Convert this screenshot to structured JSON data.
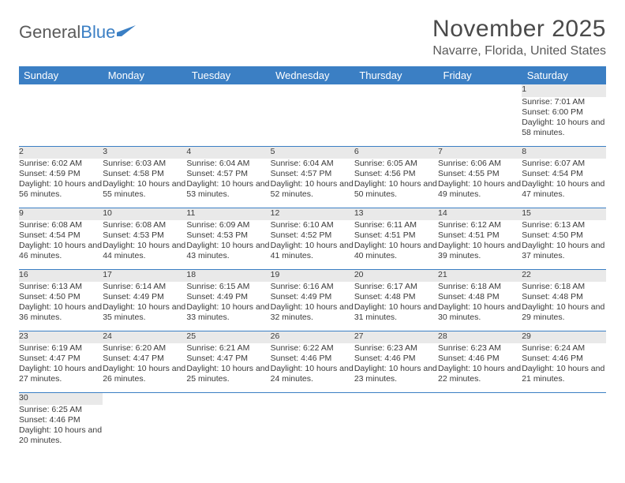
{
  "logo": {
    "text1": "General",
    "text2": "Blue"
  },
  "title": "November 2025",
  "location": "Navarre, Florida, United States",
  "colors": {
    "header_bg": "#3b7fc4",
    "header_text": "#ffffff",
    "daynum_bg": "#e9e9e9",
    "row_divider": "#3b7fc4",
    "body_text": "#3a3a3a"
  },
  "typography": {
    "title_fontsize": 30,
    "location_fontsize": 16,
    "dayheader_fontsize": 13,
    "daynum_fontsize": 12,
    "cell_fontsize": 10.5
  },
  "day_headers": [
    "Sunday",
    "Monday",
    "Tuesday",
    "Wednesday",
    "Thursday",
    "Friday",
    "Saturday"
  ],
  "weeks": [
    [
      null,
      null,
      null,
      null,
      null,
      null,
      {
        "n": "1",
        "sr": "Sunrise: 7:01 AM",
        "ss": "Sunset: 6:00 PM",
        "dl": "Daylight: 10 hours and 58 minutes."
      }
    ],
    [
      {
        "n": "2",
        "sr": "Sunrise: 6:02 AM",
        "ss": "Sunset: 4:59 PM",
        "dl": "Daylight: 10 hours and 56 minutes."
      },
      {
        "n": "3",
        "sr": "Sunrise: 6:03 AM",
        "ss": "Sunset: 4:58 PM",
        "dl": "Daylight: 10 hours and 55 minutes."
      },
      {
        "n": "4",
        "sr": "Sunrise: 6:04 AM",
        "ss": "Sunset: 4:57 PM",
        "dl": "Daylight: 10 hours and 53 minutes."
      },
      {
        "n": "5",
        "sr": "Sunrise: 6:04 AM",
        "ss": "Sunset: 4:57 PM",
        "dl": "Daylight: 10 hours and 52 minutes."
      },
      {
        "n": "6",
        "sr": "Sunrise: 6:05 AM",
        "ss": "Sunset: 4:56 PM",
        "dl": "Daylight: 10 hours and 50 minutes."
      },
      {
        "n": "7",
        "sr": "Sunrise: 6:06 AM",
        "ss": "Sunset: 4:55 PM",
        "dl": "Daylight: 10 hours and 49 minutes."
      },
      {
        "n": "8",
        "sr": "Sunrise: 6:07 AM",
        "ss": "Sunset: 4:54 PM",
        "dl": "Daylight: 10 hours and 47 minutes."
      }
    ],
    [
      {
        "n": "9",
        "sr": "Sunrise: 6:08 AM",
        "ss": "Sunset: 4:54 PM",
        "dl": "Daylight: 10 hours and 46 minutes."
      },
      {
        "n": "10",
        "sr": "Sunrise: 6:08 AM",
        "ss": "Sunset: 4:53 PM",
        "dl": "Daylight: 10 hours and 44 minutes."
      },
      {
        "n": "11",
        "sr": "Sunrise: 6:09 AM",
        "ss": "Sunset: 4:53 PM",
        "dl": "Daylight: 10 hours and 43 minutes."
      },
      {
        "n": "12",
        "sr": "Sunrise: 6:10 AM",
        "ss": "Sunset: 4:52 PM",
        "dl": "Daylight: 10 hours and 41 minutes."
      },
      {
        "n": "13",
        "sr": "Sunrise: 6:11 AM",
        "ss": "Sunset: 4:51 PM",
        "dl": "Daylight: 10 hours and 40 minutes."
      },
      {
        "n": "14",
        "sr": "Sunrise: 6:12 AM",
        "ss": "Sunset: 4:51 PM",
        "dl": "Daylight: 10 hours and 39 minutes."
      },
      {
        "n": "15",
        "sr": "Sunrise: 6:13 AM",
        "ss": "Sunset: 4:50 PM",
        "dl": "Daylight: 10 hours and 37 minutes."
      }
    ],
    [
      {
        "n": "16",
        "sr": "Sunrise: 6:13 AM",
        "ss": "Sunset: 4:50 PM",
        "dl": "Daylight: 10 hours and 36 minutes."
      },
      {
        "n": "17",
        "sr": "Sunrise: 6:14 AM",
        "ss": "Sunset: 4:49 PM",
        "dl": "Daylight: 10 hours and 35 minutes."
      },
      {
        "n": "18",
        "sr": "Sunrise: 6:15 AM",
        "ss": "Sunset: 4:49 PM",
        "dl": "Daylight: 10 hours and 33 minutes."
      },
      {
        "n": "19",
        "sr": "Sunrise: 6:16 AM",
        "ss": "Sunset: 4:49 PM",
        "dl": "Daylight: 10 hours and 32 minutes."
      },
      {
        "n": "20",
        "sr": "Sunrise: 6:17 AM",
        "ss": "Sunset: 4:48 PM",
        "dl": "Daylight: 10 hours and 31 minutes."
      },
      {
        "n": "21",
        "sr": "Sunrise: 6:18 AM",
        "ss": "Sunset: 4:48 PM",
        "dl": "Daylight: 10 hours and 30 minutes."
      },
      {
        "n": "22",
        "sr": "Sunrise: 6:18 AM",
        "ss": "Sunset: 4:48 PM",
        "dl": "Daylight: 10 hours and 29 minutes."
      }
    ],
    [
      {
        "n": "23",
        "sr": "Sunrise: 6:19 AM",
        "ss": "Sunset: 4:47 PM",
        "dl": "Daylight: 10 hours and 27 minutes."
      },
      {
        "n": "24",
        "sr": "Sunrise: 6:20 AM",
        "ss": "Sunset: 4:47 PM",
        "dl": "Daylight: 10 hours and 26 minutes."
      },
      {
        "n": "25",
        "sr": "Sunrise: 6:21 AM",
        "ss": "Sunset: 4:47 PM",
        "dl": "Daylight: 10 hours and 25 minutes."
      },
      {
        "n": "26",
        "sr": "Sunrise: 6:22 AM",
        "ss": "Sunset: 4:46 PM",
        "dl": "Daylight: 10 hours and 24 minutes."
      },
      {
        "n": "27",
        "sr": "Sunrise: 6:23 AM",
        "ss": "Sunset: 4:46 PM",
        "dl": "Daylight: 10 hours and 23 minutes."
      },
      {
        "n": "28",
        "sr": "Sunrise: 6:23 AM",
        "ss": "Sunset: 4:46 PM",
        "dl": "Daylight: 10 hours and 22 minutes."
      },
      {
        "n": "29",
        "sr": "Sunrise: 6:24 AM",
        "ss": "Sunset: 4:46 PM",
        "dl": "Daylight: 10 hours and 21 minutes."
      }
    ],
    [
      {
        "n": "30",
        "sr": "Sunrise: 6:25 AM",
        "ss": "Sunset: 4:46 PM",
        "dl": "Daylight: 10 hours and 20 minutes."
      },
      null,
      null,
      null,
      null,
      null,
      null
    ]
  ]
}
